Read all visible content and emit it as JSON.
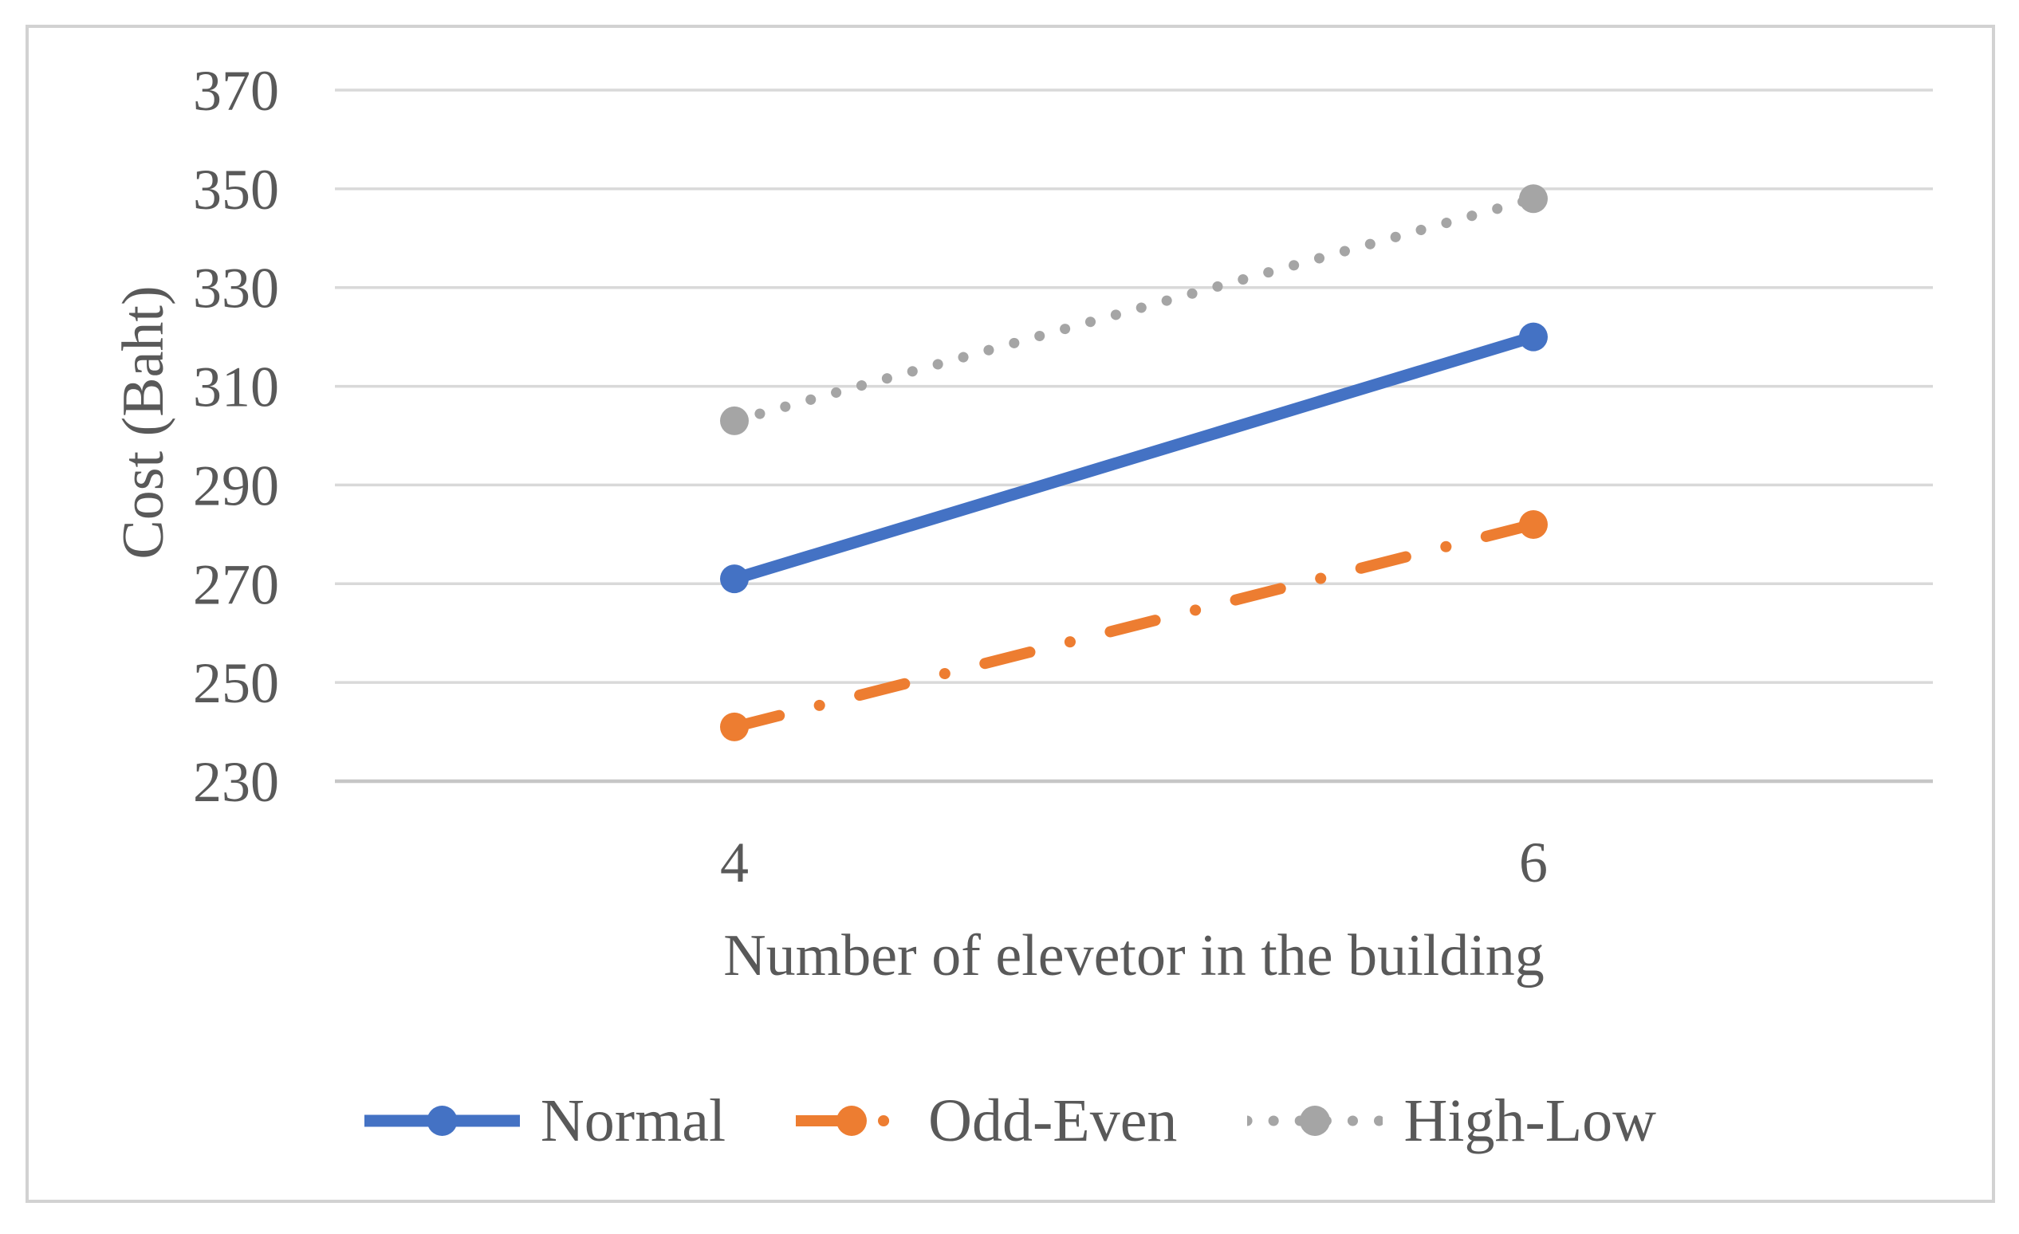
{
  "figure": {
    "background": "#FFFFFF",
    "border_color": "#D2D2D2",
    "text_color": "#595959",
    "gridline_color": "#D9D9D9",
    "axis_line_color": "#C6C6C6"
  },
  "chart_data": {
    "type": "line",
    "title": "",
    "categories": [
      "4",
      "6"
    ],
    "series": [
      {
        "name": "Normal",
        "values": [
          271,
          320
        ],
        "color": "#4472C4",
        "line_style": "solid",
        "marker": "circle"
      },
      {
        "name": "Odd-Even",
        "values": [
          241,
          282
        ],
        "color": "#ED7D31",
        "line_style": "dash-dot",
        "marker": "circle"
      },
      {
        "name": "High-Low",
        "values": [
          303,
          348
        ],
        "color": "#A5A5A5",
        "line_style": "dotted",
        "marker": "circle"
      }
    ],
    "xlabel": "Number of elevetor in the building",
    "ylabel": "Cost (Baht)",
    "ylim": [
      230,
      370
    ],
    "ytick_step": 20,
    "ytick_labels": [
      "230",
      "250",
      "270",
      "290",
      "310",
      "330",
      "350",
      "370"
    ],
    "grid": true,
    "legend_position": "bottom"
  }
}
